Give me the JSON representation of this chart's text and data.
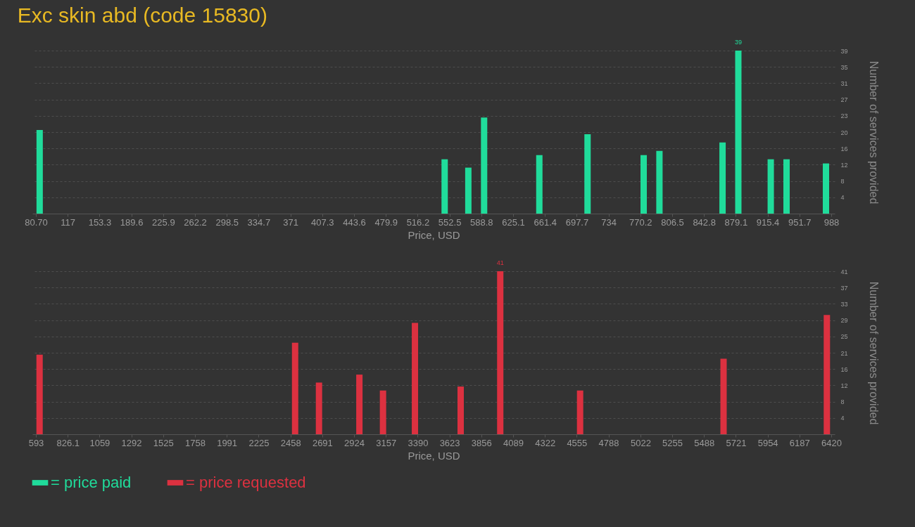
{
  "chart_data": [
    {
      "type": "bar",
      "title": "Exc skin abd (code 15830)",
      "xlabel": "Price, USD",
      "ylabel": "Number of services provided",
      "x": [
        85,
        547,
        574,
        592,
        655,
        710,
        774,
        792,
        864,
        882,
        919,
        937,
        982
      ],
      "series": [
        {
          "name": "= price paid",
          "color": "#20dc9b",
          "values": [
            20,
            13,
            11,
            23,
            14,
            19,
            14,
            15,
            17,
            39,
            13,
            13,
            12
          ],
          "value_labels": [
            null,
            null,
            null,
            null,
            null,
            null,
            null,
            null,
            null,
            "39",
            null,
            null,
            null
          ]
        }
      ],
      "xlim": [
        80.7,
        988
      ],
      "xticks": [
        {
          "value": 80.7,
          "label": "80.70"
        },
        117,
        153.3,
        189.6,
        225.9,
        262.2,
        298.5,
        334.7,
        371,
        407.3,
        443.6,
        479.9,
        516.2,
        552.5,
        588.8,
        625.1,
        661.4,
        697.7,
        734,
        770.2,
        806.5,
        842.8,
        879.1,
        915.4,
        951.7,
        988
      ],
      "ylim": [
        0,
        39
      ],
      "yticks": [
        {
          "value": 3.9,
          "label": "4"
        },
        {
          "value": 7.8,
          "label": "8"
        },
        {
          "value": 11.7,
          "label": "12"
        },
        {
          "value": 15.6,
          "label": "16"
        },
        {
          "value": 19.5,
          "label": "20"
        },
        {
          "value": 23.4,
          "label": "23"
        },
        {
          "value": 27.3,
          "label": "27"
        },
        {
          "value": 31.2,
          "label": "31"
        },
        {
          "value": 35.1,
          "label": "35"
        },
        39
      ],
      "grid": "y",
      "legend": "bottom"
    },
    {
      "type": "bar",
      "xlabel": "Price, USD",
      "ylabel": "Number of services provided",
      "x": [
        620,
        2492,
        2667,
        2963,
        3136,
        3370,
        3705,
        3995,
        4580,
        5631,
        6388
      ],
      "series": [
        {
          "name": "= price requested",
          "color": "#dc3140",
          "values": [
            20,
            23,
            13,
            15,
            11,
            28,
            12,
            41,
            11,
            19,
            30
          ],
          "value_labels": [
            null,
            null,
            null,
            null,
            null,
            null,
            null,
            "41",
            null,
            null,
            null
          ]
        }
      ],
      "xlim": [
        593,
        6420
      ],
      "xticks": [
        593,
        826.1,
        1059,
        1292,
        1525,
        1758,
        1991,
        2225,
        2458,
        2691,
        2924,
        3157,
        3390,
        3623,
        3856,
        4089,
        4322,
        4555,
        4788,
        5022,
        5255,
        5488,
        5721,
        5954,
        6187,
        6420
      ],
      "ylim": [
        0,
        41
      ],
      "yticks": [
        {
          "value": 4.1,
          "label": "4"
        },
        {
          "value": 8.2,
          "label": "8"
        },
        {
          "value": 12.3,
          "label": "12"
        },
        {
          "value": 16.4,
          "label": "16"
        },
        {
          "value": 20.5,
          "label": "21"
        },
        {
          "value": 24.6,
          "label": "25"
        },
        {
          "value": 28.7,
          "label": "29"
        },
        {
          "value": 32.8,
          "label": "33"
        },
        {
          "value": 36.9,
          "label": "37"
        },
        41
      ],
      "grid": "y",
      "legend": "bottom"
    }
  ]
}
